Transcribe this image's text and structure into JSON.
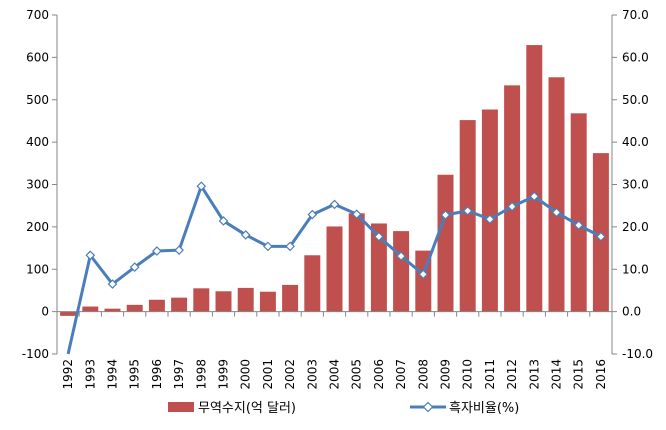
{
  "chart_data": {
    "type": "bar+line",
    "categories": [
      "1992",
      "1993",
      "1994",
      "1995",
      "1996",
      "1997",
      "1998",
      "1999",
      "2000",
      "2001",
      "2002",
      "2003",
      "2004",
      "2005",
      "2006",
      "2007",
      "2008",
      "2009",
      "2010",
      "2011",
      "2012",
      "2013",
      "2014",
      "2015",
      "2016"
    ],
    "series": [
      {
        "name": "무역수지(억 달러)",
        "type": "bar",
        "axis": "left",
        "color": "#c0504d",
        "values": [
          -10,
          12,
          7,
          16,
          28,
          33,
          55,
          48,
          56,
          47,
          63,
          133,
          201,
          232,
          208,
          190,
          144,
          323,
          452,
          477,
          534,
          629,
          553,
          468,
          374
        ]
      },
      {
        "name": "흑자비율(%)",
        "type": "line",
        "axis": "right",
        "color": "#4a7ebb",
        "marker_fill": "#ffffff",
        "values": [
          -10.0,
          13.3,
          6.5,
          10.5,
          14.3,
          14.5,
          29.6,
          21.4,
          18.1,
          15.4,
          15.4,
          22.9,
          25.3,
          23.0,
          17.7,
          13.1,
          8.8,
          22.8,
          23.8,
          21.8,
          24.8,
          27.2,
          23.4,
          20.4,
          17.7
        ]
      }
    ],
    "y_left": {
      "min": -100,
      "max": 700,
      "step": 100,
      "ticks": [
        "-100",
        "0",
        "100",
        "200",
        "300",
        "400",
        "500",
        "600",
        "700"
      ]
    },
    "y_right": {
      "min": -10,
      "max": 70,
      "step": 10,
      "ticks": [
        "-10.0",
        "0.0",
        "10.0",
        "20.0",
        "30.0",
        "40.0",
        "50.0",
        "60.0",
        "70.0"
      ]
    },
    "grid": false,
    "legend_position": "bottom"
  }
}
